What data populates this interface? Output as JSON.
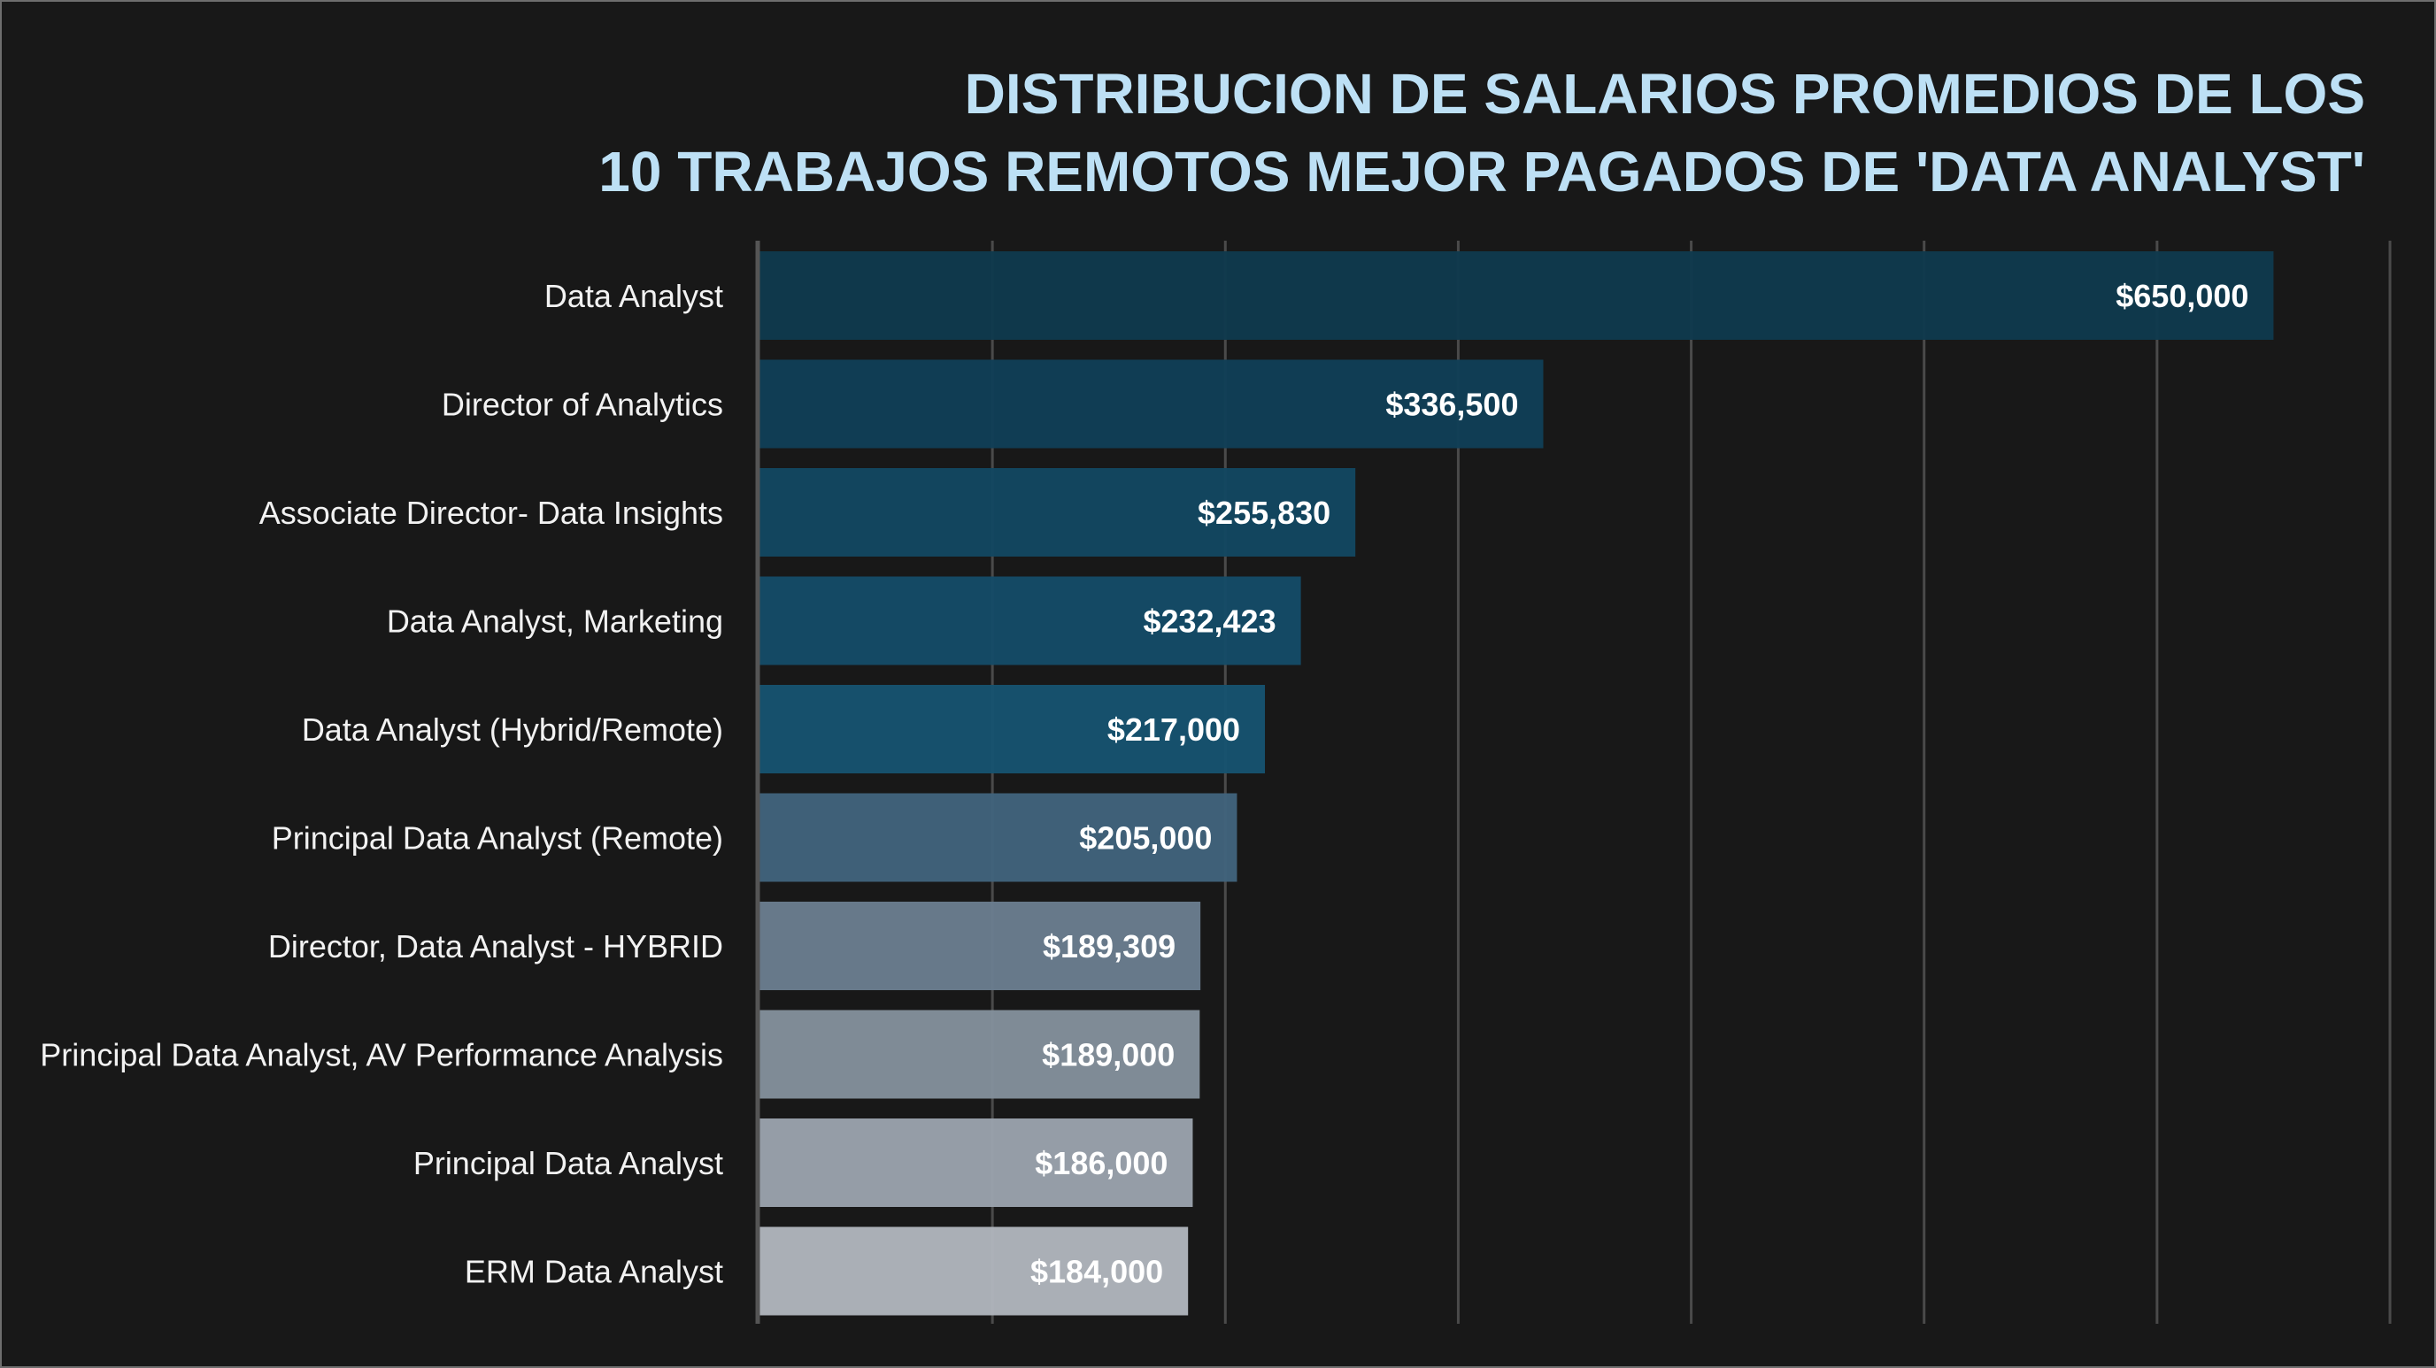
{
  "chart_data": {
    "type": "bar",
    "orientation": "horizontal",
    "title_lines": [
      "DISTRIBUCION DE SALARIOS PROMEDIOS DE LOS",
      "10 TRABAJOS REMOTOS MEJOR PAGADOS DE 'DATA ANALYST'"
    ],
    "categories": [
      "Data Analyst",
      "Director of Analytics",
      "Associate Director- Data Insights",
      "Data Analyst, Marketing",
      "Data Analyst (Hybrid/Remote)",
      "Principal Data Analyst (Remote)",
      "Director, Data Analyst - HYBRID",
      "Principal Data Analyst, AV Performance Analysis",
      "Principal Data Analyst",
      "ERM Data Analyst"
    ],
    "values": [
      650000,
      336500,
      255830,
      232423,
      217000,
      205000,
      189309,
      189000,
      186000,
      184000
    ],
    "value_labels": [
      "$650,000",
      "$336,500",
      "$255,830",
      "$232,423",
      "$217,000",
      "$205,000",
      "$189,309",
      "$189,000",
      "$186,000",
      "$184,000"
    ],
    "bar_colors": [
      "#0f3a4d",
      "#113f57",
      "#134761",
      "#154b67",
      "#17536f",
      "#41637c",
      "#6a7d8e",
      "#838f9b",
      "#9aa2ac",
      "#b0b5bc"
    ],
    "xlim": [
      0,
      700000
    ],
    "grid": true,
    "legend": "none",
    "xlabel": "",
    "ylabel": ""
  },
  "colors": {
    "background": "#181818",
    "title": "#bde0f5",
    "labels": "#f2f2f2",
    "gridline": "#4a4a4a"
  }
}
